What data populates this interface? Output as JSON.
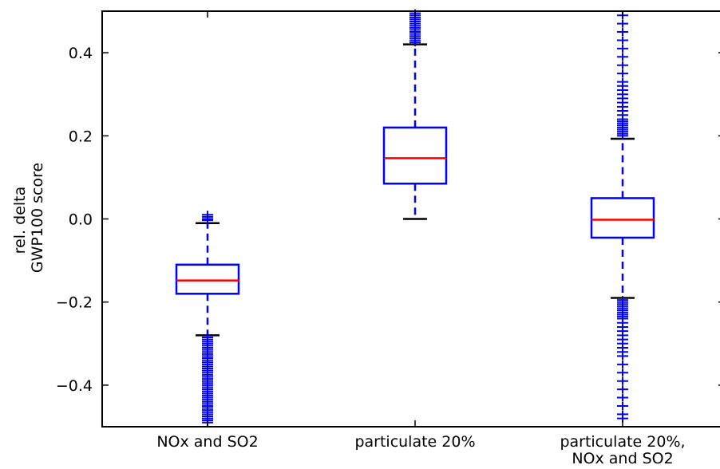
{
  "chart_data": {
    "type": "box",
    "title": "",
    "xlabel": "",
    "ylabel": [
      "rel. delta",
      "GWP100 score"
    ],
    "ylim": [
      -0.5,
      0.5
    ],
    "yticks": [
      -0.4,
      -0.2,
      0.0,
      0.2,
      0.4
    ],
    "ytick_labels": [
      "−0.4",
      "−0.2",
      "0.0",
      "0.2",
      "0.4"
    ],
    "grid": false,
    "colors": {
      "box": "#0000ff",
      "median": "#ff0000",
      "whisker_cap": "#000000",
      "axes": "#000000"
    },
    "categories": [
      {
        "label": [
          "NOx and SO2"
        ],
        "whisker_low": -0.28,
        "q1": -0.18,
        "median": -0.148,
        "q3": -0.11,
        "whisker_high": -0.01,
        "fliers": [
          0.01,
          0.005,
          0.0,
          -0.003,
          -0.285,
          -0.29,
          -0.295,
          -0.3,
          -0.305,
          -0.31,
          -0.315,
          -0.32,
          -0.325,
          -0.33,
          -0.335,
          -0.34,
          -0.345,
          -0.35,
          -0.355,
          -0.36,
          -0.365,
          -0.37,
          -0.375,
          -0.38,
          -0.385,
          -0.39,
          -0.395,
          -0.4,
          -0.405,
          -0.41,
          -0.415,
          -0.42,
          -0.425,
          -0.43,
          -0.435,
          -0.44,
          -0.445,
          -0.45,
          -0.455,
          -0.46,
          -0.465,
          -0.47,
          -0.475,
          -0.48,
          -0.485,
          -0.49
        ]
      },
      {
        "label": [
          "particulate 20%"
        ],
        "whisker_low": 0.0,
        "q1": 0.085,
        "median": 0.146,
        "q3": 0.22,
        "whisker_high": 0.42,
        "fliers": [
          0.425,
          0.43,
          0.435,
          0.44,
          0.445,
          0.45,
          0.455,
          0.46,
          0.465,
          0.47,
          0.475,
          0.48,
          0.485,
          0.49,
          0.495
        ]
      },
      {
        "label": [
          "particulate 20%,",
          "NOx and SO2"
        ],
        "whisker_low": -0.19,
        "q1": -0.045,
        "median": -0.002,
        "q3": 0.05,
        "whisker_high": 0.193,
        "fliers": [
          0.2,
          0.205,
          0.21,
          0.215,
          0.22,
          0.225,
          0.23,
          0.235,
          0.24,
          0.25,
          0.26,
          0.27,
          0.28,
          0.29,
          0.3,
          0.31,
          0.32,
          0.33,
          0.35,
          0.37,
          0.39,
          0.41,
          0.43,
          0.45,
          0.47,
          0.49,
          -0.195,
          -0.2,
          -0.205,
          -0.21,
          -0.215,
          -0.22,
          -0.225,
          -0.23,
          -0.235,
          -0.24,
          -0.25,
          -0.26,
          -0.27,
          -0.28,
          -0.29,
          -0.3,
          -0.31,
          -0.32,
          -0.33,
          -0.35,
          -0.37,
          -0.39,
          -0.41,
          -0.43,
          -0.45,
          -0.47,
          -0.48
        ]
      }
    ]
  }
}
